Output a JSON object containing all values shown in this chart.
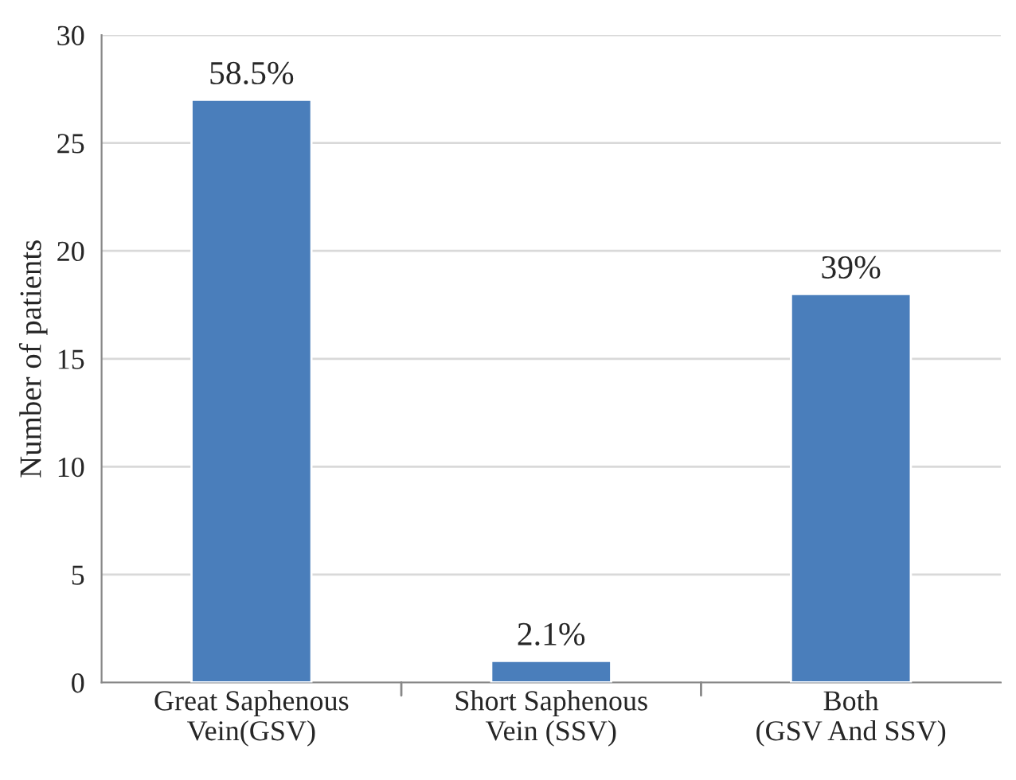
{
  "chart_data": {
    "type": "bar",
    "ylabel": "Number of patients",
    "categories": [
      "Great Saphenous\nVein(GSV)",
      "Short Saphenous\nVein (SSV)",
      "Both\n(GSV And SSV)"
    ],
    "values": [
      27,
      1,
      18
    ],
    "color": "#4a7ebb",
    "annotations": [
      {
        "text": "58.5%",
        "x": "Great Saphenous\nVein(GSV)",
        "y": 27
      },
      {
        "text": "2.1%",
        "x": "Short Saphenous\nVein (SSV)",
        "y": 1
      },
      {
        "text": "39%",
        "x": "Both\n(GSV And SSV)",
        "y": 18
      }
    ],
    "ylim": [
      0,
      30
    ],
    "yticks": [
      0,
      5,
      10,
      15,
      20,
      25,
      30
    ],
    "grid": "y",
    "legend": false
  }
}
